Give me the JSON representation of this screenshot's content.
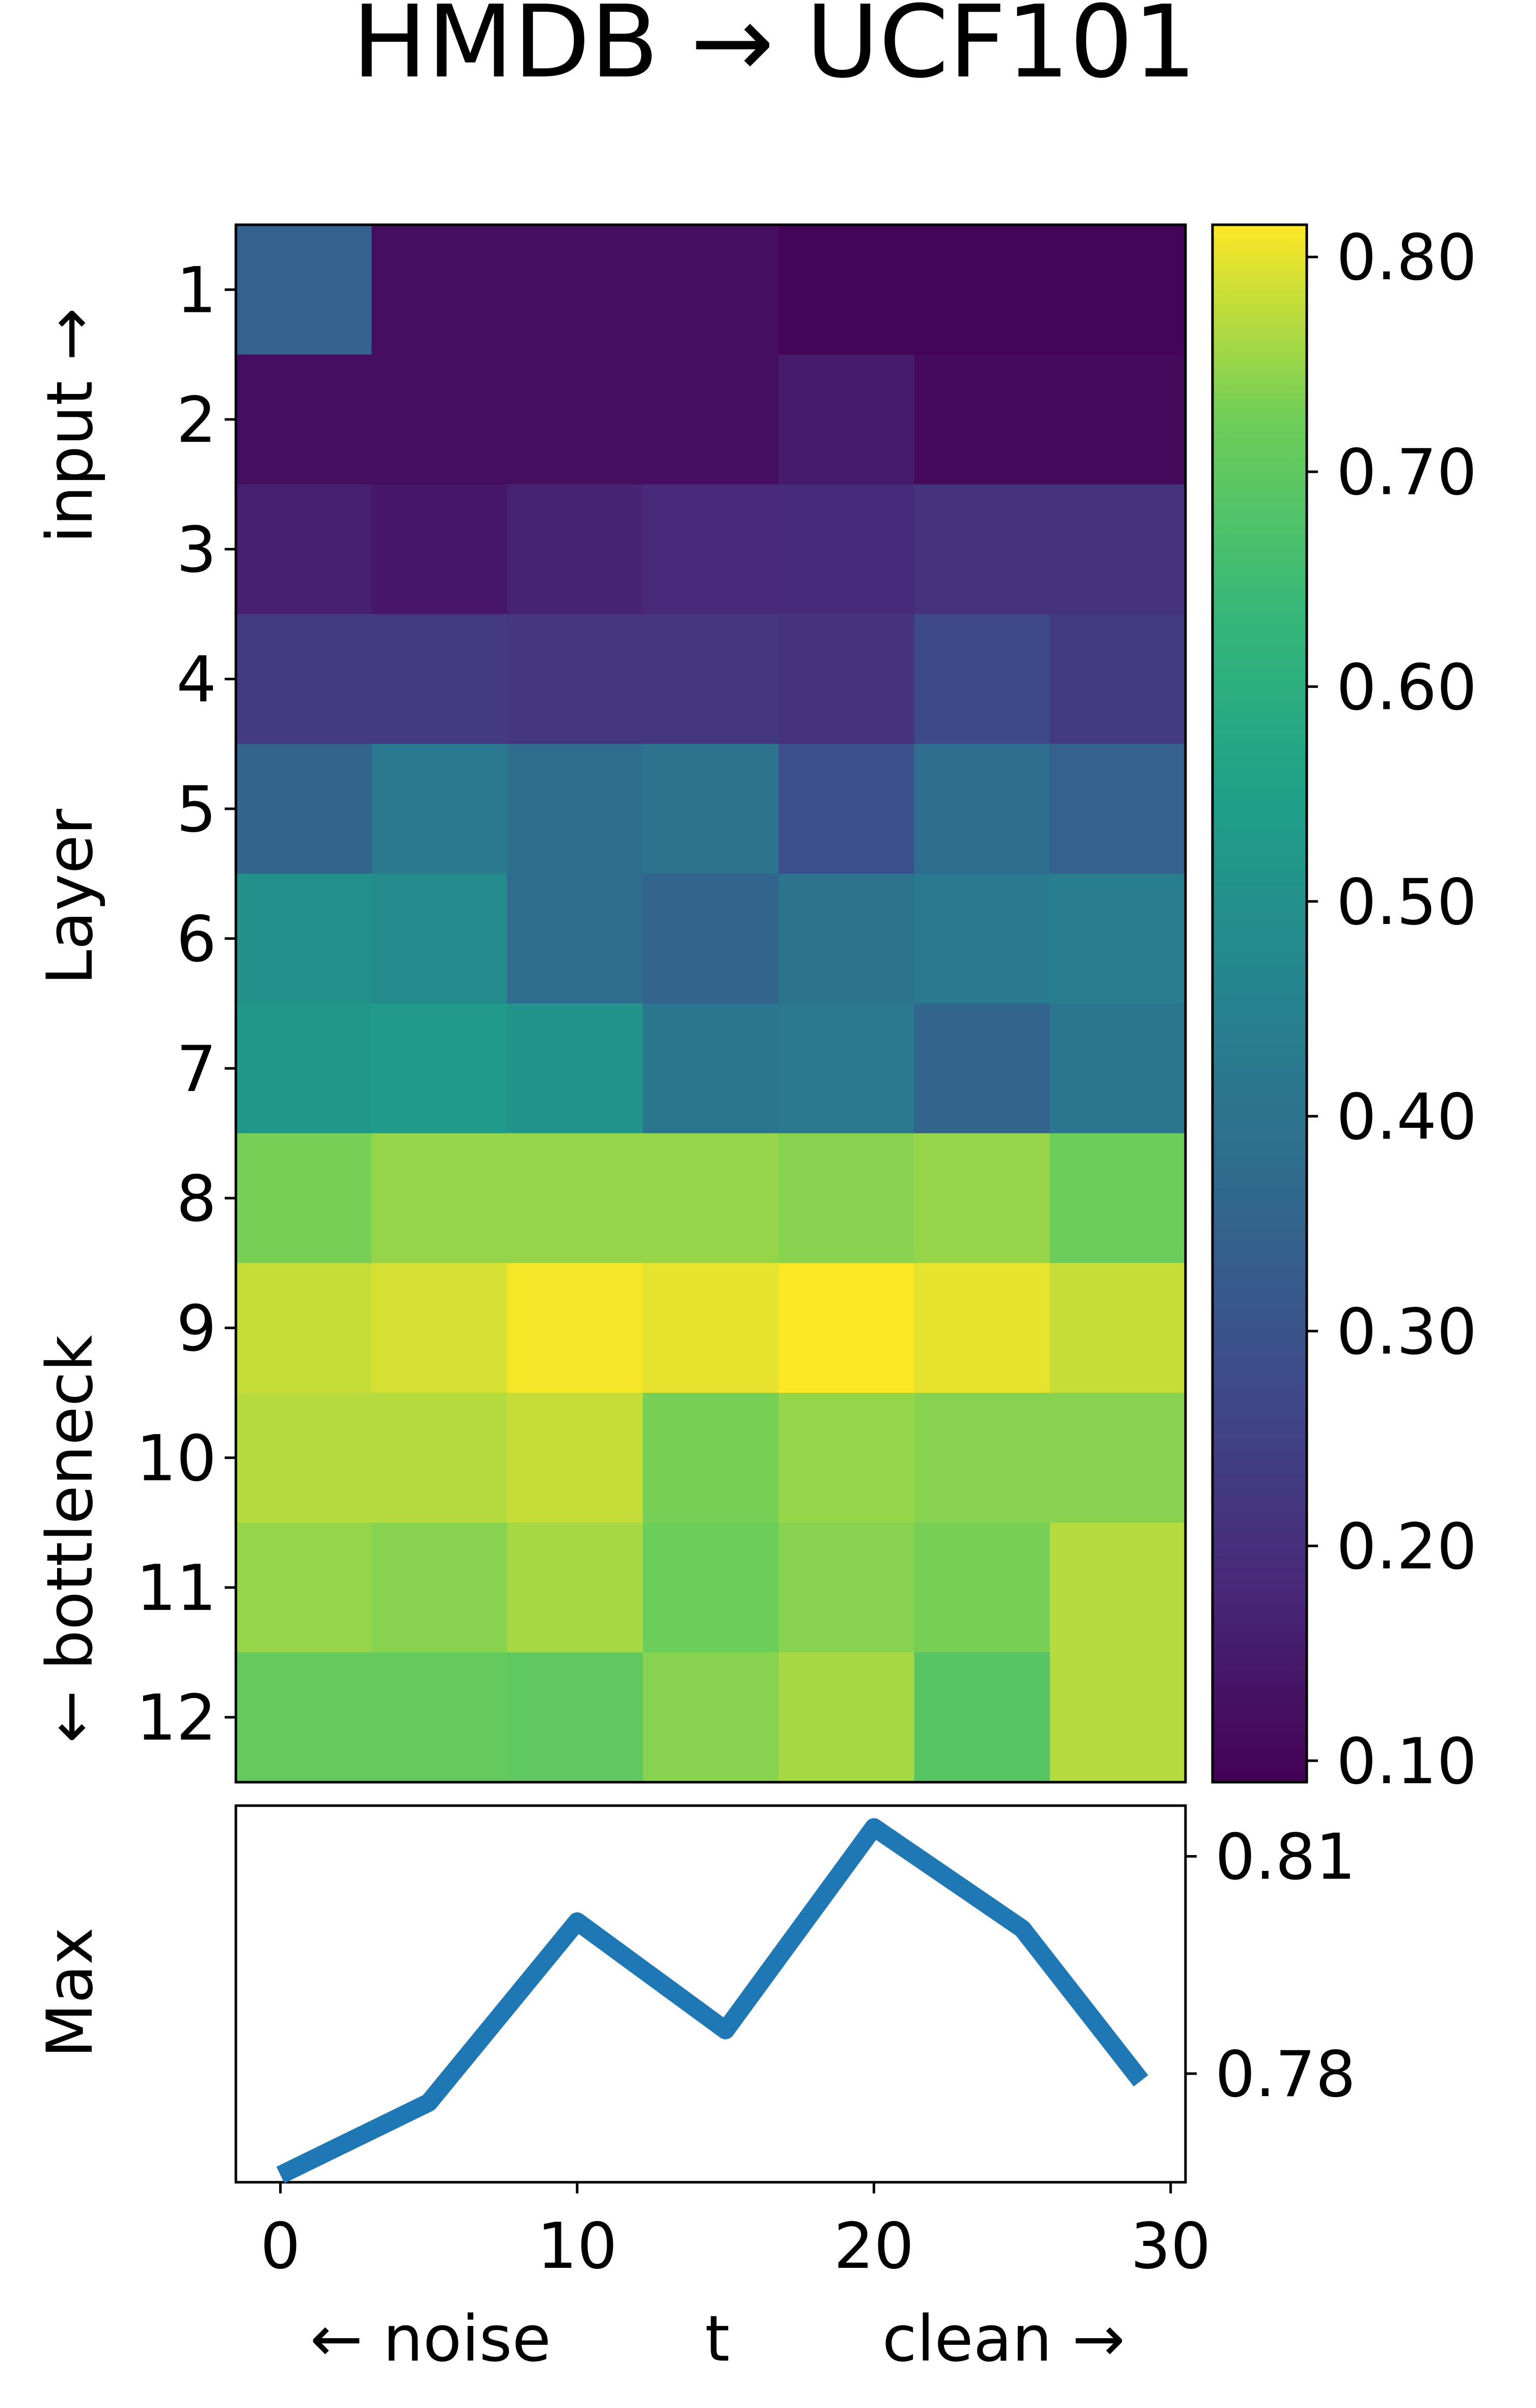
{
  "chart_data": [
    {
      "type": "heatmap",
      "title": "HMDB → UCF101",
      "ylabel": "Layer",
      "ylabel_left_annotation": "← bottleneck",
      "ylabel_right_annotation": "input →",
      "row_labels": [
        "1",
        "2",
        "3",
        "4",
        "5",
        "6",
        "7",
        "8",
        "9",
        "10",
        "11",
        "12"
      ],
      "columns": 7,
      "values": [
        [
          0.34,
          0.12,
          0.12,
          0.12,
          0.1,
          0.1,
          0.1
        ],
        [
          0.12,
          0.12,
          0.12,
          0.12,
          0.15,
          0.11,
          0.11
        ],
        [
          0.16,
          0.14,
          0.17,
          0.18,
          0.19,
          0.21,
          0.21
        ],
        [
          0.23,
          0.23,
          0.22,
          0.22,
          0.21,
          0.27,
          0.23
        ],
        [
          0.35,
          0.42,
          0.38,
          0.4,
          0.29,
          0.38,
          0.34
        ],
        [
          0.5,
          0.48,
          0.38,
          0.35,
          0.4,
          0.42,
          0.44
        ],
        [
          0.52,
          0.53,
          0.51,
          0.41,
          0.42,
          0.35,
          0.41
        ],
        [
          0.73,
          0.75,
          0.75,
          0.75,
          0.74,
          0.75,
          0.72
        ],
        [
          0.78,
          0.79,
          0.81,
          0.8,
          0.82,
          0.8,
          0.78
        ],
        [
          0.77,
          0.77,
          0.78,
          0.73,
          0.75,
          0.74,
          0.74
        ],
        [
          0.75,
          0.74,
          0.76,
          0.72,
          0.74,
          0.73,
          0.77
        ],
        [
          0.71,
          0.71,
          0.7,
          0.74,
          0.76,
          0.69,
          0.77
        ]
      ],
      "colormap": "viridis",
      "vlim": [
        0.09,
        0.815
      ]
    },
    {
      "type": "colorbar",
      "tick_labels": [
        "0.10",
        "0.20",
        "0.30",
        "0.40",
        "0.50",
        "0.60",
        "0.70",
        "0.80"
      ],
      "ticks": [
        0.1,
        0.2,
        0.3,
        0.4,
        0.5,
        0.6,
        0.7,
        0.8
      ],
      "range": [
        0.09,
        0.815
      ]
    },
    {
      "type": "line",
      "ylabel": "Max",
      "xlabel": "t",
      "xlabel_left": "← noise",
      "xlabel_right": "clean →",
      "x": [
        0,
        5,
        10,
        15,
        20,
        25,
        29
      ],
      "y": [
        0.766,
        0.776,
        0.801,
        0.786,
        0.814,
        0.8,
        0.779
      ],
      "xlim": [
        -1.5,
        30.5
      ],
      "ylim": [
        0.765,
        0.817
      ],
      "xticks": [
        0,
        10,
        20,
        30
      ],
      "xtick_labels": [
        "0",
        "10",
        "20",
        "30"
      ],
      "yticks": [
        0.78,
        0.81
      ],
      "ytick_labels": [
        "0.78",
        "0.81"
      ],
      "line_color": "#1f77b4"
    }
  ]
}
